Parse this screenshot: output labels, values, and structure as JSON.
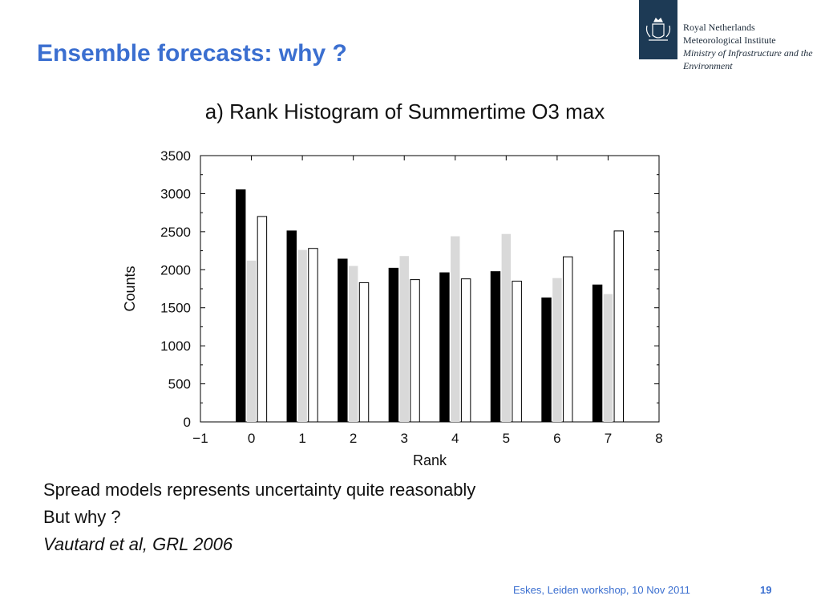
{
  "slide": {
    "title": "Ensemble forecasts: why ?",
    "body_lines": [
      "Spread models represents uncertainty quite reasonably",
      "But why ?",
      "Vautard et al, GRL 2006"
    ],
    "footer": "Eskes, Leiden workshop, 10 Nov 2011",
    "page_number": "19"
  },
  "logo": {
    "line1": "Royal Netherlands",
    "line2": "Meteorological Institute",
    "line3": "Ministry of Infrastructure and the",
    "line4": "Environment"
  },
  "colors": {
    "title": "#3b6fd0",
    "logo_box": "#1d3a55",
    "series": [
      "#000000",
      "#d9d9d9",
      "#ffffff"
    ]
  },
  "chart_data": {
    "type": "bar",
    "title": "a) Rank Histogram of Summertime O3 max",
    "xlabel": "Rank",
    "ylabel": "Counts",
    "xlim": [
      -1,
      8
    ],
    "ylim": [
      0,
      3500
    ],
    "xticks": [
      "−1",
      "0",
      "1",
      "2",
      "3",
      "4",
      "5",
      "6",
      "7",
      "8"
    ],
    "yticks": [
      "0",
      "500",
      "1000",
      "1500",
      "2000",
      "2500",
      "3000",
      "3500"
    ],
    "categories": [
      "0",
      "1",
      "2",
      "3",
      "4",
      "5",
      "6",
      "7"
    ],
    "series": [
      {
        "values": [
          3050,
          2510,
          2140,
          2020,
          1960,
          1975,
          1630,
          1800
        ]
      },
      {
        "values": [
          2120,
          2260,
          2050,
          2180,
          2440,
          2470,
          1890,
          1680
        ]
      },
      {
        "values": [
          2700,
          2280,
          1830,
          1870,
          1880,
          1850,
          2170,
          2510
        ]
      }
    ],
    "grid": false,
    "legend": "none"
  }
}
